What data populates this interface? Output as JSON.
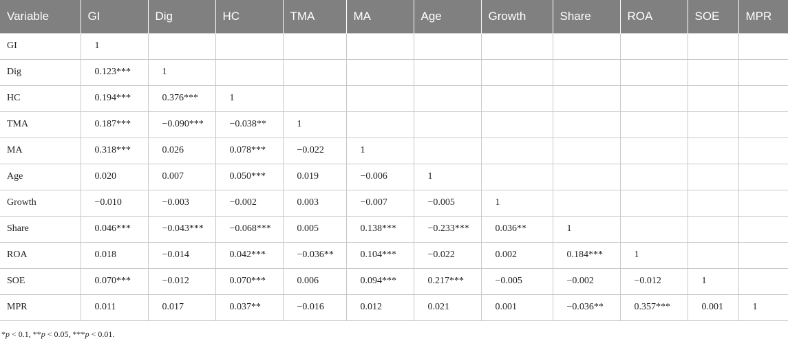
{
  "table": {
    "headers": [
      "Variable",
      "GI",
      "Dig",
      "HC",
      "TMA",
      "MA",
      "Age",
      "Growth",
      "Share",
      "ROA",
      "SOE",
      "MPR"
    ],
    "rows": [
      {
        "label": "GI",
        "cells": [
          "1",
          "",
          "",
          "",
          "",
          "",
          "",
          "",
          "",
          "",
          ""
        ]
      },
      {
        "label": "Dig",
        "cells": [
          "0.123***",
          "1",
          "",
          "",
          "",
          "",
          "",
          "",
          "",
          "",
          ""
        ]
      },
      {
        "label": "HC",
        "cells": [
          "0.194***",
          "0.376***",
          "1",
          "",
          "",
          "",
          "",
          "",
          "",
          "",
          ""
        ]
      },
      {
        "label": "TMA",
        "cells": [
          "0.187***",
          "−0.090***",
          "−0.038**",
          "1",
          "",
          "",
          "",
          "",
          "",
          "",
          ""
        ]
      },
      {
        "label": "MA",
        "cells": [
          "0.318***",
          "0.026",
          "0.078***",
          "−0.022",
          "1",
          "",
          "",
          "",
          "",
          "",
          ""
        ]
      },
      {
        "label": "Age",
        "cells": [
          "0.020",
          "0.007",
          "0.050***",
          "0.019",
          "−0.006",
          "1",
          "",
          "",
          "",
          "",
          ""
        ]
      },
      {
        "label": "Growth",
        "cells": [
          "−0.010",
          "−0.003",
          "−0.002",
          "0.003",
          "−0.007",
          "−0.005",
          "1",
          "",
          "",
          "",
          ""
        ]
      },
      {
        "label": "Share",
        "cells": [
          "0.046***",
          "−0.043***",
          "−0.068***",
          "0.005",
          "0.138***",
          "−0.233***",
          "0.036**",
          "1",
          "",
          "",
          ""
        ]
      },
      {
        "label": "ROA",
        "cells": [
          "0.018",
          "−0.014",
          "0.042***",
          "−0.036**",
          "0.104***",
          "−0.022",
          "0.002",
          "0.184***",
          "1",
          "",
          ""
        ]
      },
      {
        "label": "SOE",
        "cells": [
          "0.070***",
          "−0.012",
          "0.070***",
          "0.006",
          "0.094***",
          "0.217***",
          "−0.005",
          "−0.002",
          "−0.012",
          "1",
          ""
        ]
      },
      {
        "label": "MPR",
        "cells": [
          "0.011",
          "0.017",
          "0.037**",
          "−0.016",
          "0.012",
          "0.021",
          "0.001",
          "−0.036**",
          "0.357***",
          "0.001",
          "1"
        ]
      }
    ]
  },
  "footnote": "*p < 0.1, **p < 0.05, ***p < 0.01.",
  "colors": {
    "header_bg": "#808080",
    "header_text": "#ffffff",
    "grid_line": "#c8c8c8"
  }
}
